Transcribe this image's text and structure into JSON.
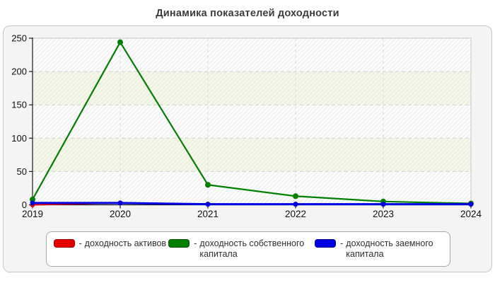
{
  "page": {
    "title": "Динамика показателей доходности"
  },
  "chart_data": {
    "type": "line",
    "title": "Динамика показателей доходности",
    "categories": [
      "2019",
      "2020",
      "2021",
      "2022",
      "2023",
      "2024"
    ],
    "series": [
      {
        "name": "доходность активов",
        "color": "#e60000",
        "line_width": 2,
        "marker_r": 3.4,
        "values": [
          0,
          2.8,
          0.9,
          0.9,
          0.9,
          0.9
        ]
      },
      {
        "name": "доходность собственного капитала",
        "color": "#008000",
        "line_width": 2.2,
        "marker_r": 4,
        "values": [
          8,
          244,
          30,
          13,
          5,
          2
        ]
      },
      {
        "name": "доходность заемного капитала",
        "color": "#0000e0",
        "line_width": 3,
        "marker_r": 3.5,
        "values": [
          2.8,
          2.8,
          0.9,
          0.9,
          0.9,
          0.9
        ]
      }
    ],
    "xlabel": "",
    "ylabel": "",
    "ylim": [
      0,
      250
    ],
    "yticks": [
      0,
      50,
      100,
      150,
      200,
      250
    ],
    "grid": true,
    "legend_position": "bottom",
    "legend_prefix": "-"
  }
}
